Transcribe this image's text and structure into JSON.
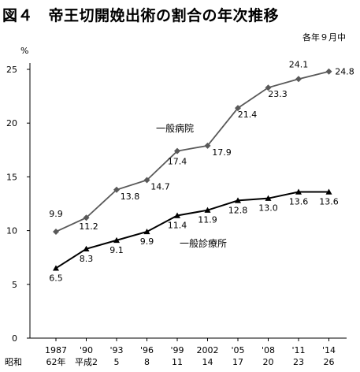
{
  "title": "図４　帝王切開娩出術の割合の年次推移",
  "note": "各年９月中",
  "chart_data": {
    "type": "line",
    "ylabel": "%",
    "ylim": [
      0,
      25
    ],
    "yticks": [
      0,
      5,
      10,
      15,
      20,
      25
    ],
    "era_label": "昭和",
    "categories": [
      {
        "top": "1987",
        "bottom": "62年"
      },
      {
        "top": "'90",
        "bottom": "平成2"
      },
      {
        "top": "'93",
        "bottom": "5"
      },
      {
        "top": "'96",
        "bottom": "8"
      },
      {
        "top": "'99",
        "bottom": "11"
      },
      {
        "top": "2002",
        "bottom": "14"
      },
      {
        "top": "'05",
        "bottom": "17"
      },
      {
        "top": "'08",
        "bottom": "20"
      },
      {
        "top": "'11",
        "bottom": "23"
      },
      {
        "top": "'14",
        "bottom": "26"
      }
    ],
    "series": [
      {
        "name": "一般病院",
        "marker": "diamond",
        "color": "#595959",
        "values": [
          9.9,
          11.2,
          13.8,
          14.7,
          17.4,
          17.9,
          21.4,
          23.3,
          24.1,
          24.8
        ],
        "labels": [
          "9.9",
          "11.2",
          "13.8",
          "14.7",
          "17.4",
          "17.9",
          "21.4",
          "23.3",
          "24.1",
          "24.8"
        ]
      },
      {
        "name": "一般診療所",
        "marker": "triangle",
        "color": "#000000",
        "values": [
          6.5,
          8.3,
          9.1,
          9.9,
          11.4,
          11.9,
          12.8,
          13.0,
          13.6,
          13.6
        ],
        "labels": [
          "6.5",
          "8.3",
          "9.1",
          "9.9",
          "11.4",
          "11.9",
          "12.8",
          "13.0",
          "13.6",
          "13.6"
        ]
      }
    ]
  }
}
